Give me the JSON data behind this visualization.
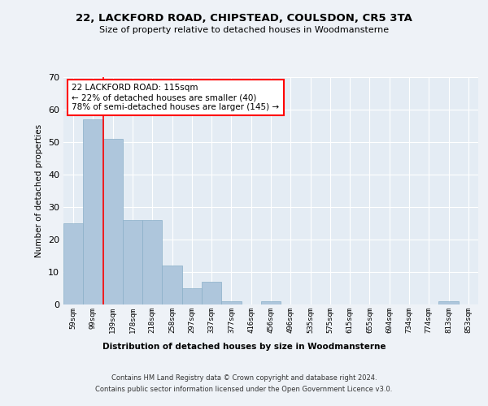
{
  "title1": "22, LACKFORD ROAD, CHIPSTEAD, COULSDON, CR5 3TA",
  "title2": "Size of property relative to detached houses in Woodmansterne",
  "xlabel": "Distribution of detached houses by size in Woodmansterne",
  "ylabel": "Number of detached properties",
  "categories": [
    "59sqm",
    "99sqm",
    "139sqm",
    "178sqm",
    "218sqm",
    "258sqm",
    "297sqm",
    "337sqm",
    "377sqm",
    "416sqm",
    "456sqm",
    "496sqm",
    "535sqm",
    "575sqm",
    "615sqm",
    "655sqm",
    "694sqm",
    "734sqm",
    "774sqm",
    "813sqm",
    "853sqm"
  ],
  "values": [
    25,
    57,
    51,
    26,
    26,
    12,
    5,
    7,
    1,
    0,
    1,
    0,
    0,
    0,
    0,
    0,
    0,
    0,
    0,
    1,
    0
  ],
  "bar_color": "#aec6dc",
  "bar_edge_color": "#8aafc8",
  "red_line_x": 1.5,
  "ylim": [
    0,
    70
  ],
  "yticks": [
    0,
    10,
    20,
    30,
    40,
    50,
    60,
    70
  ],
  "annotation_text_line1": "22 LACKFORD ROAD: 115sqm",
  "annotation_text_line2": "← 22% of detached houses are smaller (40)",
  "annotation_text_line3": "78% of semi-detached houses are larger (145) →",
  "footer1": "Contains HM Land Registry data © Crown copyright and database right 2024.",
  "footer2": "Contains public sector information licensed under the Open Government Licence v3.0.",
  "bg_color": "#eef2f7",
  "plot_bg_color": "#e4ecf4"
}
